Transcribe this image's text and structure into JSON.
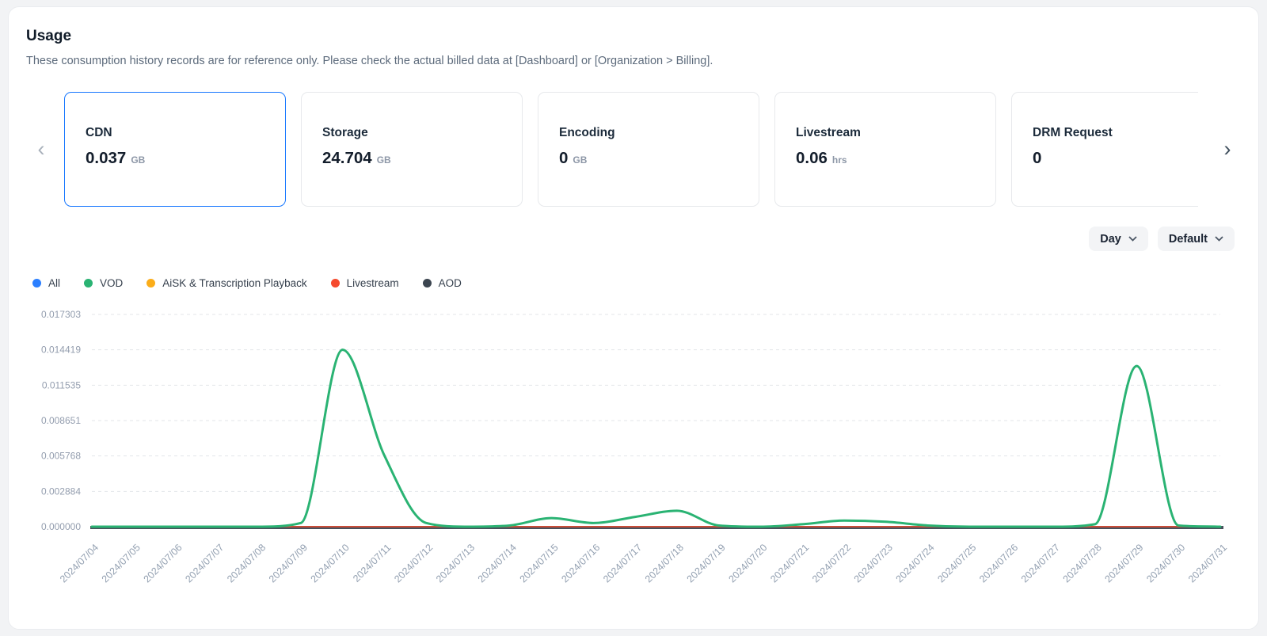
{
  "page": {
    "title": "Usage",
    "subtitle": "These consumption history records are for reference only. Please check the actual billed data at [Dashboard] or [Organization > Billing]."
  },
  "icons": {
    "prev": "‹",
    "next": "›",
    "dropdown": "chevron-down"
  },
  "cards": [
    {
      "label": "CDN",
      "value": "0.037",
      "unit": "GB",
      "selected": true
    },
    {
      "label": "Storage",
      "value": "24.704",
      "unit": "GB",
      "selected": false
    },
    {
      "label": "Encoding",
      "value": "0",
      "unit": "GB",
      "selected": false
    },
    {
      "label": "Livestream",
      "value": "0.06",
      "unit": "hrs",
      "selected": false
    },
    {
      "label": "DRM Request",
      "value": "0",
      "unit": "",
      "selected": false
    }
  ],
  "filters": {
    "interval": "Day",
    "mode": "Default"
  },
  "legend": [
    {
      "label": "All",
      "color": "#2b7fff"
    },
    {
      "label": "VOD",
      "color": "#2ab373"
    },
    {
      "label": "AiSK & Transcription Playback",
      "color": "#fbad19"
    },
    {
      "label": "Livestream",
      "color": "#f54a2d"
    },
    {
      "label": "AOD",
      "color": "#3c4550"
    }
  ],
  "chart_data": {
    "type": "line",
    "x": [
      "2024/07/04",
      "2024/07/05",
      "2024/07/06",
      "2024/07/07",
      "2024/07/08",
      "2024/07/09",
      "2024/07/10",
      "2024/07/11",
      "2024/07/12",
      "2024/07/13",
      "2024/07/14",
      "2024/07/15",
      "2024/07/16",
      "2024/07/17",
      "2024/07/18",
      "2024/07/19",
      "2024/07/20",
      "2024/07/21",
      "2024/07/22",
      "2024/07/23",
      "2024/07/24",
      "2024/07/25",
      "2024/07/26",
      "2024/07/27",
      "2024/07/28",
      "2024/07/29",
      "2024/07/30",
      "2024/07/31"
    ],
    "series": [
      {
        "name": "VOD",
        "color": "#2ab373",
        "values": [
          0,
          0,
          0,
          0,
          0,
          0.0003,
          0.014419,
          0.0058,
          0.0003,
          0,
          0.0001,
          0.0007,
          0.0003,
          0.0008,
          0.0013,
          0.0001,
          0,
          0.0002,
          0.0005,
          0.0004,
          0.0001,
          0,
          0,
          0,
          0.0002,
          0.0131,
          0.0001,
          0
        ]
      },
      {
        "name": "Livestream",
        "color": "#f54a2d",
        "values": [
          0,
          0,
          0,
          0,
          0,
          0,
          0,
          0,
          0,
          0,
          0,
          0,
          0,
          0,
          0,
          0,
          0,
          0,
          0,
          0,
          0,
          0,
          0,
          0,
          0,
          0,
          0,
          0
        ]
      }
    ],
    "yticks": [
      "0.017303",
      "0.014419",
      "0.011535",
      "0.008651",
      "0.005768",
      "0.002884",
      "0.000000"
    ],
    "ylim": [
      0,
      0.017303
    ],
    "grid": "dashed",
    "axis_color": "#49515d",
    "legend_position": "top-left"
  }
}
